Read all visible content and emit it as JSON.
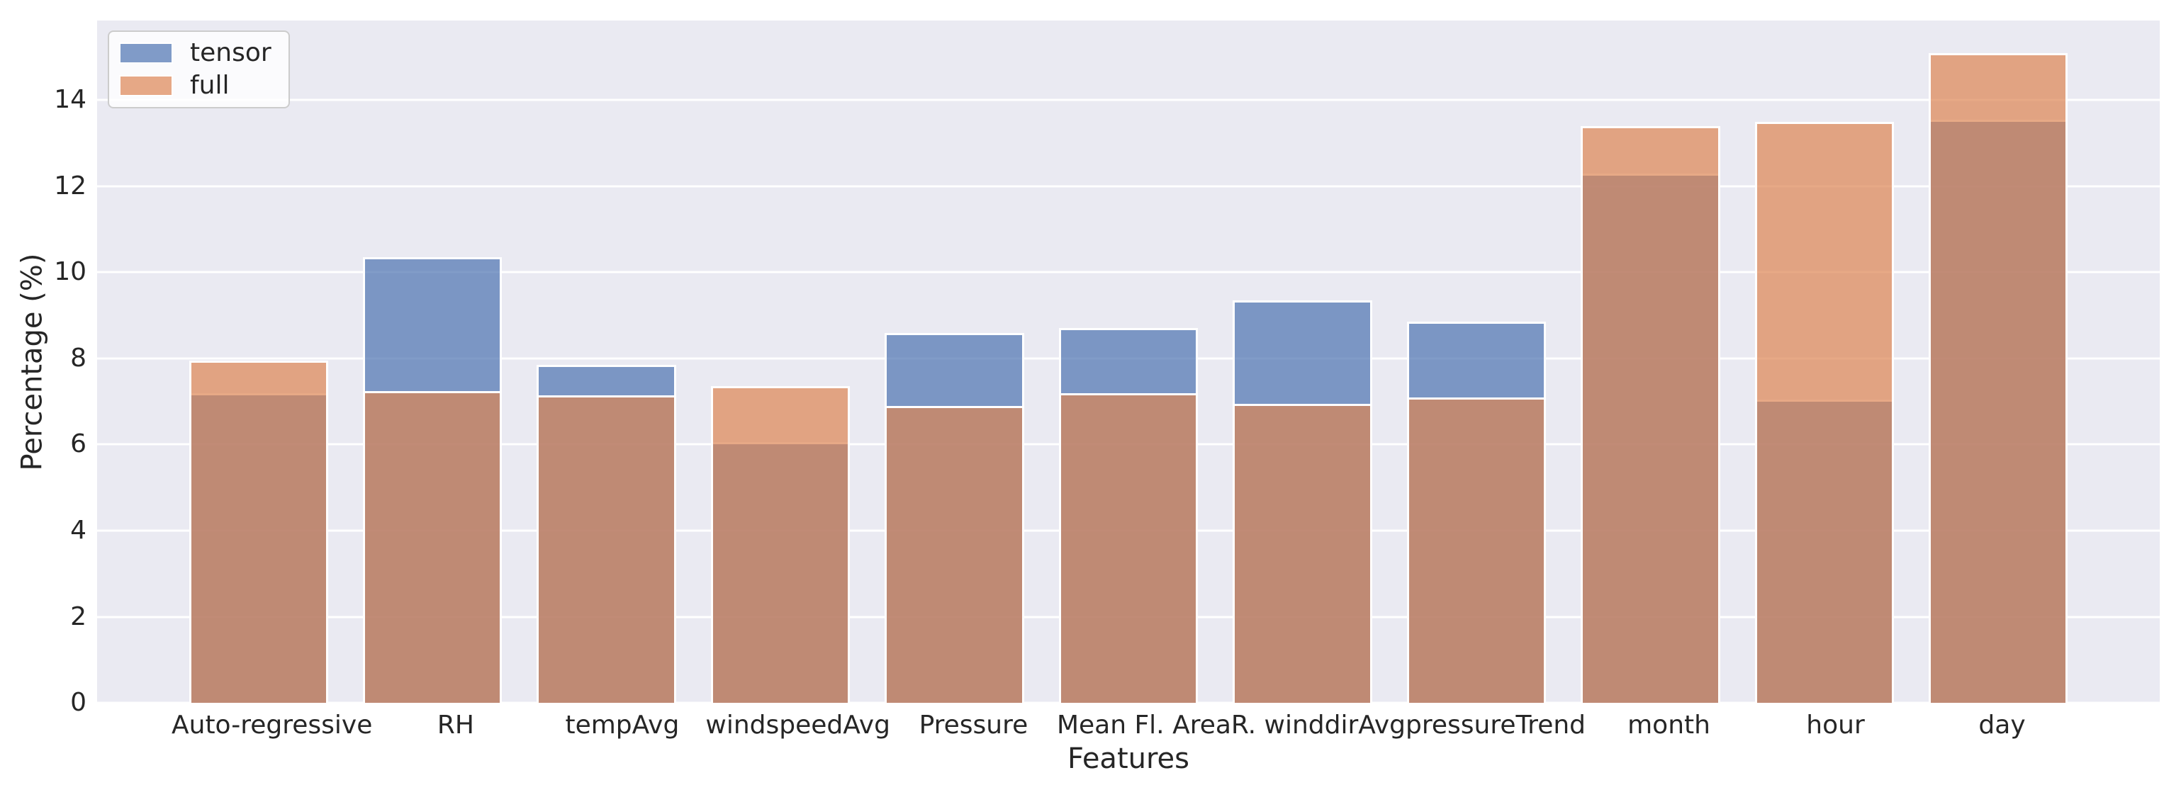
{
  "figure": {
    "background": "#ffffff",
    "plot_background": "#eaeaf2",
    "gridline_color": "#ffffff",
    "text_color": "#262626"
  },
  "chart_data": {
    "type": "bar",
    "title": "",
    "xlabel": "Features",
    "ylabel": "Percentage (%)",
    "categories": [
      "Auto-regressive",
      "RH",
      "tempAvg",
      "windspeedAvg",
      "Pressure",
      "Mean Fl. Area",
      "R. winddirAvg",
      "pressureTrend",
      "month",
      "hour",
      "day"
    ],
    "series": [
      {
        "name": "tensor",
        "color": "#4c72b0",
        "rgba": "rgba(76,114,176,0.7)",
        "values": [
          7.2,
          10.35,
          7.85,
          6.05,
          8.6,
          8.7,
          9.35,
          8.85,
          12.3,
          7.05,
          13.55
        ]
      },
      {
        "name": "full",
        "color": "#dd8452",
        "rgba": "rgba(221,132,82,0.7)",
        "values": [
          7.95,
          7.25,
          7.15,
          7.35,
          6.9,
          7.2,
          6.95,
          7.1,
          13.4,
          13.5,
          15.1
        ]
      }
    ],
    "bar_alpha": 0.7,
    "bar_overlap": "overlaid (not stacked), full drawn over tensor",
    "ylim": [
      0,
      15.85
    ],
    "yticks": [
      0,
      2,
      4,
      6,
      8,
      10,
      12,
      14
    ],
    "grid": true,
    "legend_position": "upper-left"
  },
  "legend": {
    "items": [
      {
        "label": "tensor",
        "color": "#4c72b0"
      },
      {
        "label": "full",
        "color": "#dd8452"
      }
    ]
  }
}
